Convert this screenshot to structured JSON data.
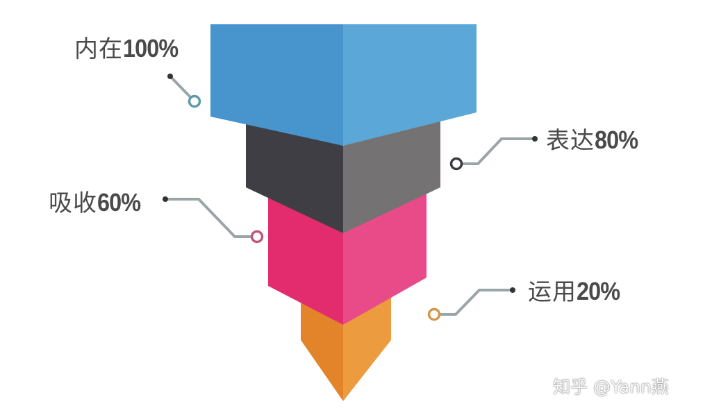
{
  "levels": [
    {
      "name": "内在",
      "percent": "100%",
      "value": 100,
      "color_left": "#4894cc",
      "color_right": "#5aa7d8"
    },
    {
      "name": "表达",
      "percent": "80%",
      "value": 80,
      "color_left": "#3e3e44",
      "color_right": "#757273"
    },
    {
      "name": "吸收",
      "percent": "60%",
      "value": 60,
      "color_left": "#e22c6e",
      "color_right": "#e84b88"
    },
    {
      "name": "运用",
      "percent": "20%",
      "value": 20,
      "color_left": "#e3832a",
      "color_right": "#ec9b3f"
    }
  ],
  "connector_colors": {
    "line": "#9aa5a7",
    "dot": "#333333",
    "ring_1": "#5d9ba8",
    "ring_2": "#3a3a3f",
    "ring_3": "#c0577a",
    "ring_4": "#d7954c"
  },
  "watermark": "知乎 @Yann燕"
}
